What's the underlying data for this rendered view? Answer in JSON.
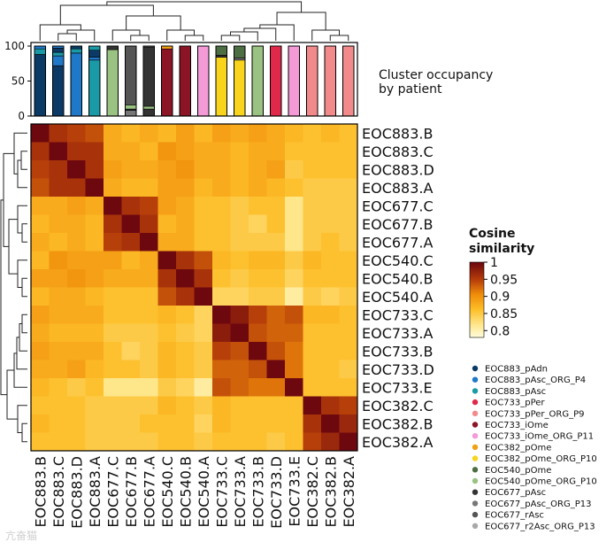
{
  "chart_data": {
    "type": "heatmap",
    "labels": [
      "EOC883.B",
      "EOC883.C",
      "EOC883.D",
      "EOC883.A",
      "EOC677.C",
      "EOC677.B",
      "EOC677.A",
      "EOC540.C",
      "EOC540.B",
      "EOC540.A",
      "EOC733.C",
      "EOC733.A",
      "EOC733.B",
      "EOC733.D",
      "EOC733.E",
      "EOC382.C",
      "EOC382.B",
      "EOC382.A"
    ],
    "matrix": [
      [
        1.0,
        0.96,
        0.95,
        0.94,
        0.88,
        0.87,
        0.88,
        0.87,
        0.89,
        0.87,
        0.89,
        0.88,
        0.89,
        0.88,
        0.87,
        0.86,
        0.87,
        0.86
      ],
      [
        0.96,
        1.0,
        0.96,
        0.96,
        0.88,
        0.88,
        0.87,
        0.9,
        0.89,
        0.88,
        0.88,
        0.87,
        0.88,
        0.88,
        0.86,
        0.86,
        0.86,
        0.86
      ],
      [
        0.95,
        0.96,
        1.0,
        0.96,
        0.89,
        0.88,
        0.88,
        0.89,
        0.9,
        0.88,
        0.88,
        0.87,
        0.88,
        0.89,
        0.85,
        0.86,
        0.86,
        0.86
      ],
      [
        0.94,
        0.96,
        0.96,
        1.0,
        0.88,
        0.87,
        0.87,
        0.89,
        0.89,
        0.87,
        0.88,
        0.87,
        0.88,
        0.87,
        0.86,
        0.85,
        0.85,
        0.85
      ],
      [
        0.88,
        0.88,
        0.89,
        0.88,
        1.0,
        0.96,
        0.95,
        0.89,
        0.88,
        0.86,
        0.86,
        0.85,
        0.86,
        0.86,
        0.82,
        0.85,
        0.85,
        0.85
      ],
      [
        0.87,
        0.88,
        0.88,
        0.87,
        0.96,
        1.0,
        0.96,
        0.87,
        0.88,
        0.86,
        0.86,
        0.85,
        0.84,
        0.86,
        0.82,
        0.85,
        0.85,
        0.85
      ],
      [
        0.88,
        0.87,
        0.88,
        0.87,
        0.95,
        0.96,
        1.0,
        0.88,
        0.88,
        0.86,
        0.86,
        0.85,
        0.85,
        0.85,
        0.82,
        0.85,
        0.86,
        0.85
      ],
      [
        0.87,
        0.9,
        0.89,
        0.89,
        0.89,
        0.87,
        0.88,
        1.0,
        0.96,
        0.94,
        0.87,
        0.86,
        0.87,
        0.87,
        0.85,
        0.87,
        0.86,
        0.86
      ],
      [
        0.89,
        0.89,
        0.9,
        0.89,
        0.88,
        0.88,
        0.88,
        0.96,
        1.0,
        0.96,
        0.86,
        0.85,
        0.86,
        0.86,
        0.84,
        0.86,
        0.86,
        0.86
      ],
      [
        0.87,
        0.88,
        0.88,
        0.87,
        0.86,
        0.86,
        0.86,
        0.94,
        0.96,
        1.0,
        0.84,
        0.84,
        0.85,
        0.85,
        0.81,
        0.85,
        0.84,
        0.85
      ],
      [
        0.89,
        0.88,
        0.88,
        0.88,
        0.86,
        0.86,
        0.86,
        0.87,
        0.86,
        0.84,
        1.0,
        0.98,
        0.95,
        0.93,
        0.94,
        0.87,
        0.87,
        0.86
      ],
      [
        0.88,
        0.87,
        0.87,
        0.87,
        0.85,
        0.85,
        0.85,
        0.86,
        0.85,
        0.84,
        0.98,
        1.0,
        0.94,
        0.93,
        0.93,
        0.86,
        0.86,
        0.86
      ],
      [
        0.89,
        0.88,
        0.88,
        0.88,
        0.86,
        0.84,
        0.85,
        0.87,
        0.86,
        0.85,
        0.95,
        0.94,
        1.0,
        0.94,
        0.92,
        0.86,
        0.86,
        0.86
      ],
      [
        0.88,
        0.88,
        0.89,
        0.87,
        0.86,
        0.86,
        0.85,
        0.87,
        0.86,
        0.85,
        0.93,
        0.93,
        0.94,
        1.0,
        0.92,
        0.86,
        0.86,
        0.85
      ],
      [
        0.87,
        0.86,
        0.85,
        0.86,
        0.82,
        0.82,
        0.82,
        0.85,
        0.84,
        0.81,
        0.94,
        0.93,
        0.92,
        0.92,
        1.0,
        0.86,
        0.86,
        0.86
      ],
      [
        0.86,
        0.86,
        0.86,
        0.85,
        0.85,
        0.85,
        0.85,
        0.87,
        0.86,
        0.85,
        0.87,
        0.86,
        0.86,
        0.86,
        0.86,
        1.0,
        0.96,
        0.95
      ],
      [
        0.87,
        0.86,
        0.86,
        0.85,
        0.85,
        0.85,
        0.86,
        0.86,
        0.86,
        0.84,
        0.87,
        0.86,
        0.86,
        0.86,
        0.86,
        0.96,
        1.0,
        0.97
      ],
      [
        0.86,
        0.86,
        0.86,
        0.85,
        0.85,
        0.85,
        0.85,
        0.86,
        0.86,
        0.85,
        0.86,
        0.86,
        0.86,
        0.85,
        0.86,
        0.95,
        0.97,
        1.0
      ]
    ],
    "colorbar": {
      "title_line1": "Cosine",
      "title_line2": "similarity",
      "range": [
        0.78,
        1.0
      ],
      "ticks": [
        "1",
        "0.95",
        "0.9",
        "0.85",
        "0.8"
      ],
      "tick_values": [
        1.0,
        0.95,
        0.9,
        0.85,
        0.8
      ]
    },
    "occupancy": {
      "title_line1": "Cluster occupancy",
      "title_line2": "by patient",
      "yticks": [
        "100",
        "50",
        "0"
      ],
      "ytick_values": [
        100,
        50,
        0
      ],
      "ylim": [
        0,
        100
      ],
      "bars": [
        [
          {
            "cat": 0,
            "value": 88
          },
          {
            "cat": 2,
            "value": 8
          },
          {
            "cat": 1,
            "value": 4
          }
        ],
        [
          {
            "cat": 0,
            "value": 72
          },
          {
            "cat": 1,
            "value": 14
          },
          {
            "cat": 2,
            "value": 5
          },
          {
            "cat": 0,
            "value": 6
          },
          {
            "cat": 1,
            "value": 3
          }
        ],
        [
          {
            "cat": 1,
            "value": 90
          },
          {
            "cat": 2,
            "value": 6
          },
          {
            "cat": 0,
            "value": 4
          }
        ],
        [
          {
            "cat": 2,
            "value": 80
          },
          {
            "cat": 1,
            "value": 4
          },
          {
            "cat": 0,
            "value": 10
          },
          {
            "cat": 2,
            "value": 6
          }
        ],
        [
          {
            "cat": 10,
            "value": 95
          },
          {
            "cat": 11,
            "value": 5
          }
        ],
        [
          {
            "cat": 12,
            "value": 8
          },
          {
            "cat": 11,
            "value": 2
          },
          {
            "cat": 10,
            "value": 6
          },
          {
            "cat": 13,
            "value": 84
          }
        ],
        [
          {
            "cat": 11,
            "value": 10
          },
          {
            "cat": 10,
            "value": 4
          },
          {
            "cat": 11,
            "value": 84
          },
          {
            "cat": 13,
            "value": 2
          }
        ],
        [
          {
            "cat": 5,
            "value": 96
          },
          {
            "cat": 7,
            "value": 4
          }
        ],
        [
          {
            "cat": 5,
            "value": 100
          }
        ],
        [
          {
            "cat": 6,
            "value": 100
          }
        ],
        [
          {
            "cat": 8,
            "value": 84
          },
          {
            "cat": 11,
            "value": 3
          },
          {
            "cat": 9,
            "value": 13
          }
        ],
        [
          {
            "cat": 8,
            "value": 80
          },
          {
            "cat": 12,
            "value": 3
          },
          {
            "cat": 9,
            "value": 17
          }
        ],
        [
          {
            "cat": 10,
            "value": 100
          }
        ],
        [
          {
            "cat": 3,
            "value": 100
          }
        ],
        [
          {
            "cat": 6,
            "value": 100
          }
        ],
        [
          {
            "cat": 4,
            "value": 100
          }
        ],
        [
          {
            "cat": 4,
            "value": 100
          }
        ],
        [
          {
            "cat": 4,
            "value": 100
          }
        ]
      ]
    },
    "legend": [
      {
        "label": "EOC883_pAdn",
        "color": "#0b3a66"
      },
      {
        "label": "EOC883_pAsc_ORG_P4",
        "color": "#1f78c8"
      },
      {
        "label": "EOC883_pAsc",
        "color": "#1a9aa6"
      },
      {
        "label": "EOC733_pPer",
        "color": "#e0294a"
      },
      {
        "label": "EOC733_pPer_ORG_P9",
        "color": "#f28a8c"
      },
      {
        "label": "EOC733_iOme",
        "color": "#8b1425"
      },
      {
        "label": "EOC733_iOme_ORG_P11",
        "color": "#f49ad6"
      },
      {
        "label": "EOC382_pOme",
        "color": "#f0a012"
      },
      {
        "label": "EOC382_pOme_ORG_P10",
        "color": "#f8d41c"
      },
      {
        "label": "EOC540_pOme",
        "color": "#4d6e43"
      },
      {
        "label": "EOC540_pOme_ORG_P10",
        "color": "#9ac282"
      },
      {
        "label": "EOC677_pAsc",
        "color": "#333333"
      },
      {
        "label": "EOC677_pAsc_ORG_P13",
        "color": "#777777"
      },
      {
        "label": "EOC677_rAsc",
        "color": "#555555"
      },
      {
        "label": "EOC677_r2Asc_ORG_P13",
        "color": "#a8a8a8"
      }
    ]
  },
  "watermark": "亢奋猫"
}
